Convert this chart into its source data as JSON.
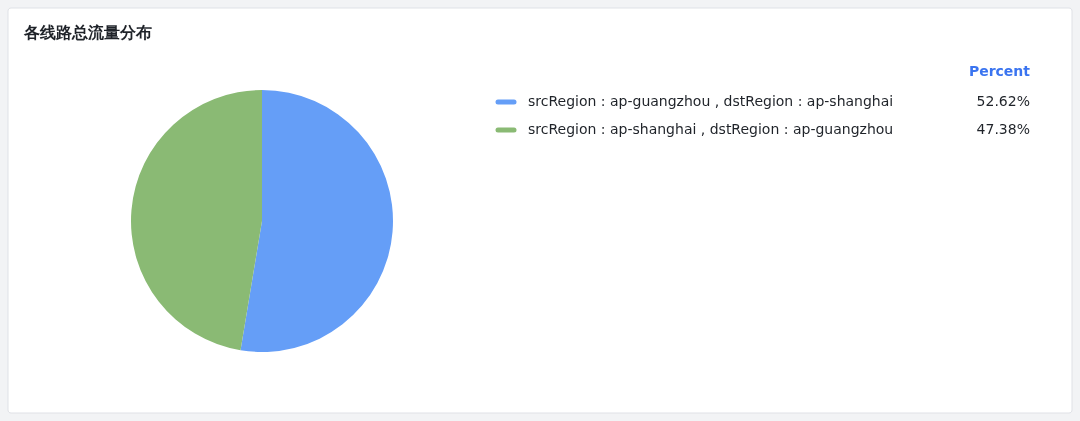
{
  "chart_data": {
    "type": "pie",
    "title": "各线路总流量分布",
    "legend_title": "Percent",
    "legend": "top right",
    "value_labels": [
      "52.62%",
      "47.38%"
    ],
    "categories": [
      "srcRegion : ap-guangzhou , dstRegion : ap-shanghai",
      "srcRegion : ap-shanghai , dstRegion : ap-guangzhou"
    ],
    "values": [
      52.62,
      47.38
    ],
    "colors": [
      "#659ef7",
      "#8aba74"
    ]
  }
}
